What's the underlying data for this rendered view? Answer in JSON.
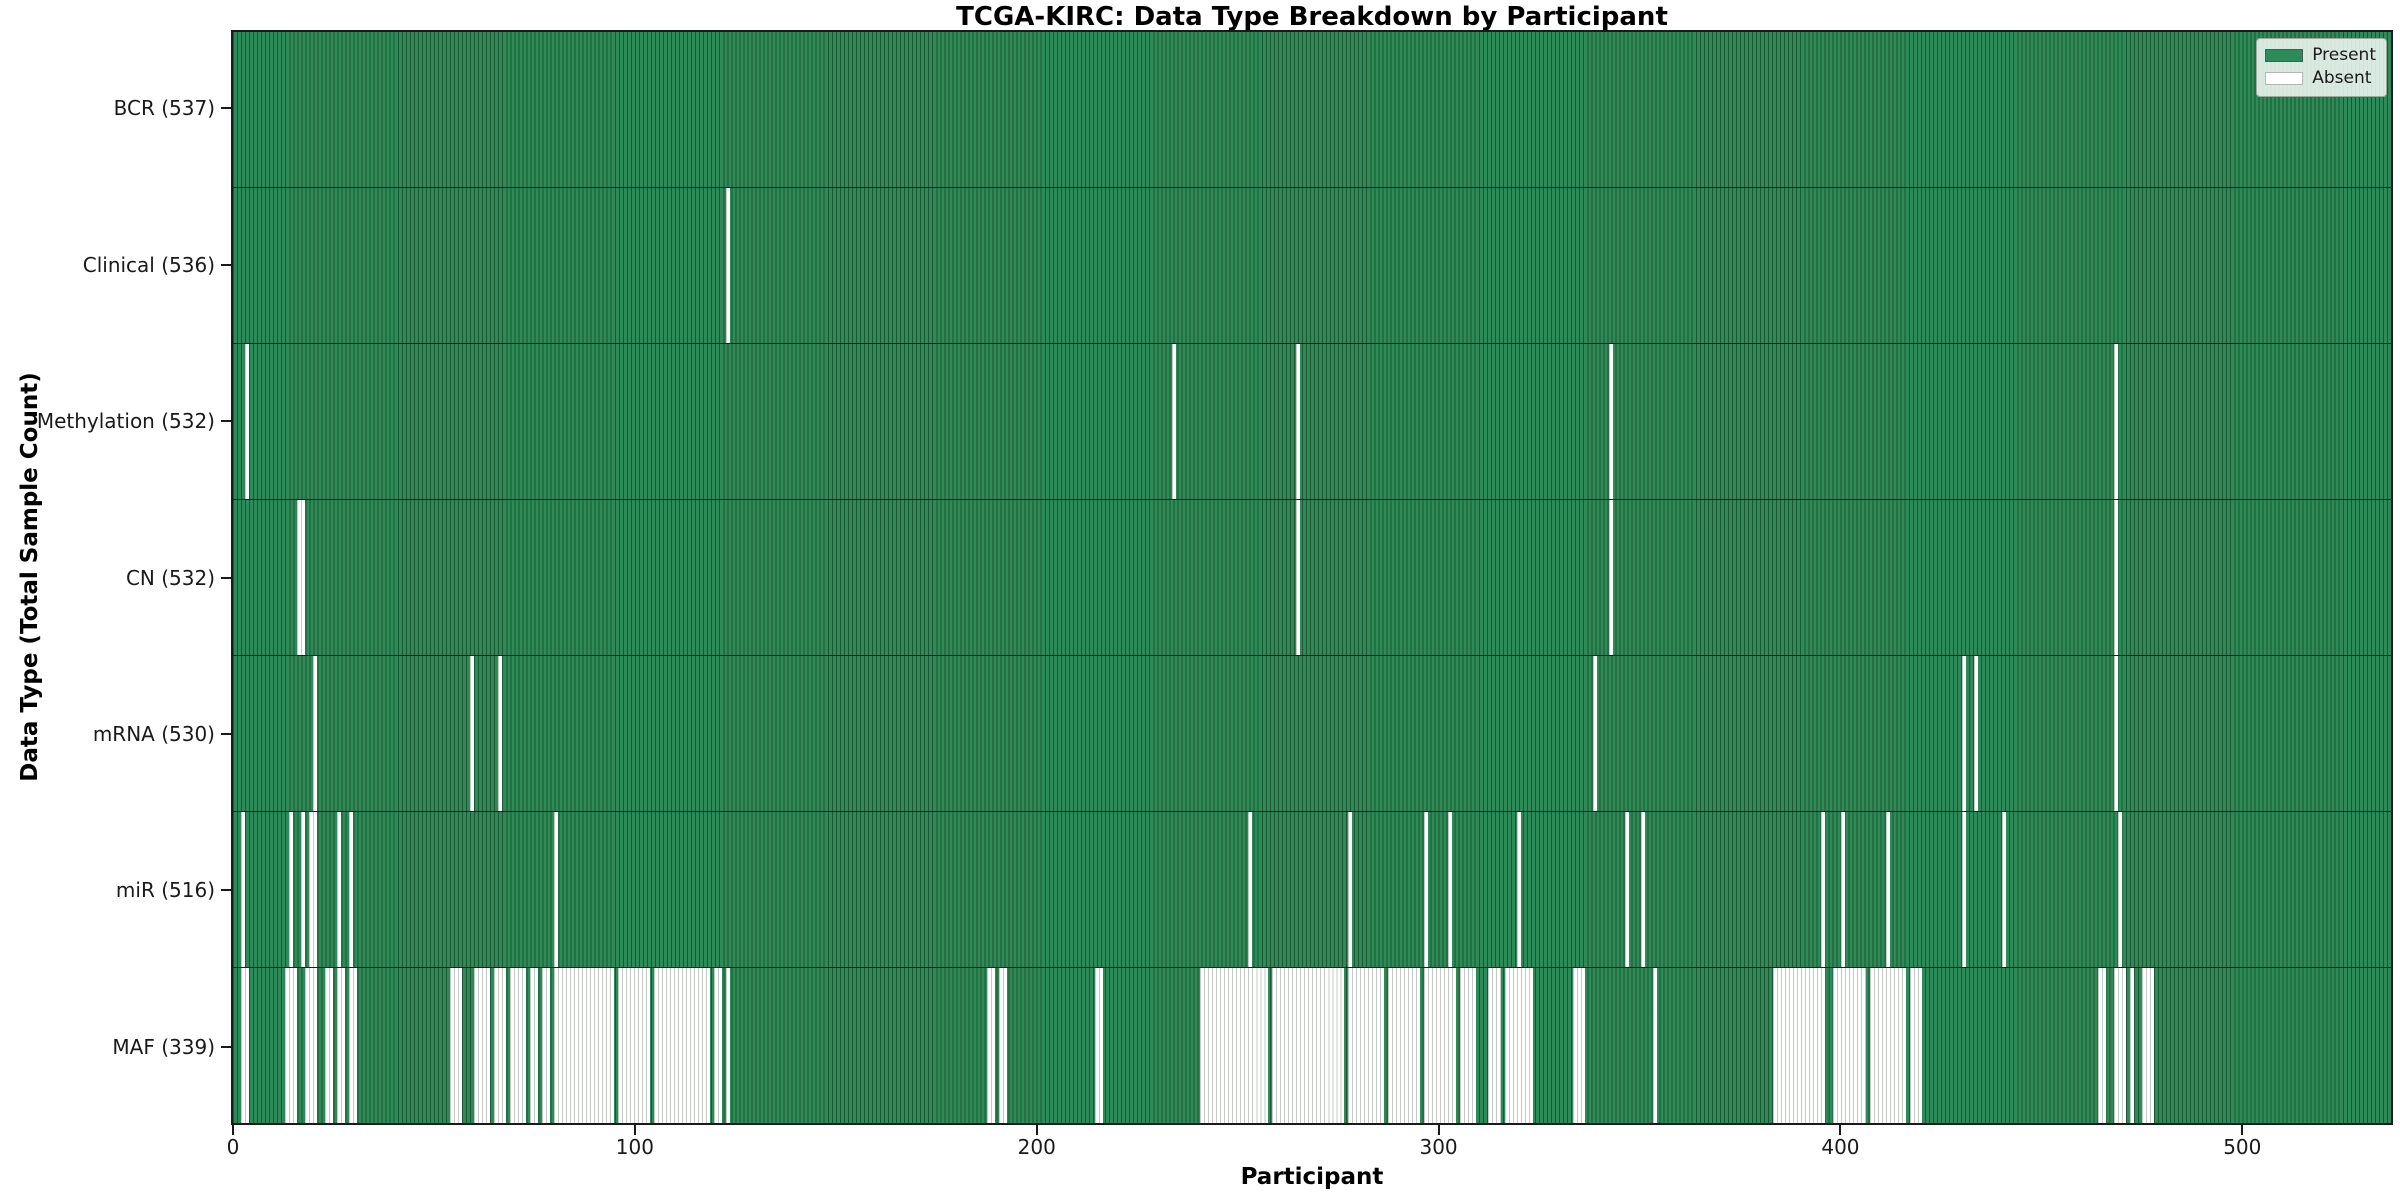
{
  "chart_data": {
    "type": "heatmap",
    "title": "TCGA-KIRC: Data Type Breakdown by Participant",
    "xlabel": "Participant",
    "ylabel": "Data Type (Total Sample Count)",
    "x_ticks": [
      0,
      100,
      200,
      300,
      400,
      500
    ],
    "x_tick_labels": [
      "0",
      "100",
      "200",
      "300",
      "400",
      "500"
    ],
    "x_range": [
      0,
      537
    ],
    "total_participants": 537,
    "grid": false,
    "legend_position": "upper right",
    "legend": [
      {
        "label": "Present",
        "color": "#2e8b57"
      },
      {
        "label": "Absent",
        "color": "#ffffff"
      }
    ],
    "colors": {
      "present": "#2e8b57",
      "absent": "#ffffff",
      "bar_edge": "rgba(0,0,0,0.38)",
      "absent_edge": "#c4cac4",
      "row_boundary": "#1a1a1a"
    },
    "rows": [
      {
        "name": "BCR",
        "label": "BCR (537)",
        "count": 537,
        "absent_runs": []
      },
      {
        "name": "Clinical",
        "label": "Clinical (536)",
        "count": 536,
        "absent_runs": [
          [
            123,
            123
          ]
        ]
      },
      {
        "name": "Methylation",
        "label": "Methylation (532)",
        "count": 532,
        "absent_runs": [
          [
            3,
            3
          ],
          [
            234,
            234
          ],
          [
            265,
            265
          ],
          [
            343,
            343
          ],
          [
            469,
            469
          ]
        ]
      },
      {
        "name": "CN",
        "label": "CN (532)",
        "count": 532,
        "absent_runs": [
          [
            16,
            17
          ],
          [
            265,
            265
          ],
          [
            343,
            343
          ],
          [
            469,
            469
          ]
        ]
      },
      {
        "name": "mRNA",
        "label": "mRNA (530)",
        "count": 530,
        "absent_runs": [
          [
            20,
            20
          ],
          [
            59,
            59
          ],
          [
            66,
            66
          ],
          [
            339,
            339
          ],
          [
            431,
            431
          ],
          [
            434,
            434
          ],
          [
            469,
            469
          ]
        ]
      },
      {
        "name": "miR",
        "label": "miR (516)",
        "count": 516,
        "absent_runs": [
          [
            2,
            2
          ],
          [
            14,
            14
          ],
          [
            17,
            17
          ],
          [
            19,
            20
          ],
          [
            26,
            26
          ],
          [
            29,
            29
          ],
          [
            80,
            80
          ],
          [
            253,
            253
          ],
          [
            278,
            278
          ],
          [
            297,
            297
          ],
          [
            303,
            303
          ],
          [
            320,
            320
          ],
          [
            347,
            347
          ],
          [
            351,
            351
          ],
          [
            396,
            396
          ],
          [
            401,
            401
          ],
          [
            412,
            412
          ],
          [
            431,
            431
          ],
          [
            441,
            441
          ],
          [
            470,
            470
          ]
        ]
      },
      {
        "name": "MAF",
        "label": "MAF (339)",
        "count": 339,
        "absent_runs": [
          [
            2,
            3
          ],
          [
            13,
            15
          ],
          [
            18,
            20
          ],
          [
            23,
            24
          ],
          [
            26,
            27
          ],
          [
            29,
            30
          ],
          [
            54,
            56
          ],
          [
            60,
            63
          ],
          [
            65,
            67
          ],
          [
            69,
            72
          ],
          [
            74,
            75
          ],
          [
            77,
            78
          ],
          [
            80,
            83
          ],
          [
            84,
            94
          ],
          [
            96,
            103
          ],
          [
            105,
            109
          ],
          [
            110,
            118
          ],
          [
            120,
            121
          ],
          [
            123,
            123
          ],
          [
            188,
            189
          ],
          [
            191,
            192
          ],
          [
            215,
            216
          ],
          [
            241,
            257
          ],
          [
            259,
            276
          ],
          [
            278,
            286
          ],
          [
            288,
            295
          ],
          [
            297,
            304
          ],
          [
            306,
            309
          ],
          [
            313,
            315
          ],
          [
            317,
            323
          ],
          [
            334,
            336
          ],
          [
            354,
            354
          ],
          [
            384,
            396
          ],
          [
            399,
            406
          ],
          [
            408,
            416
          ],
          [
            418,
            420
          ],
          [
            465,
            466
          ],
          [
            469,
            471
          ],
          [
            473,
            473
          ],
          [
            476,
            478
          ]
        ]
      }
    ]
  }
}
